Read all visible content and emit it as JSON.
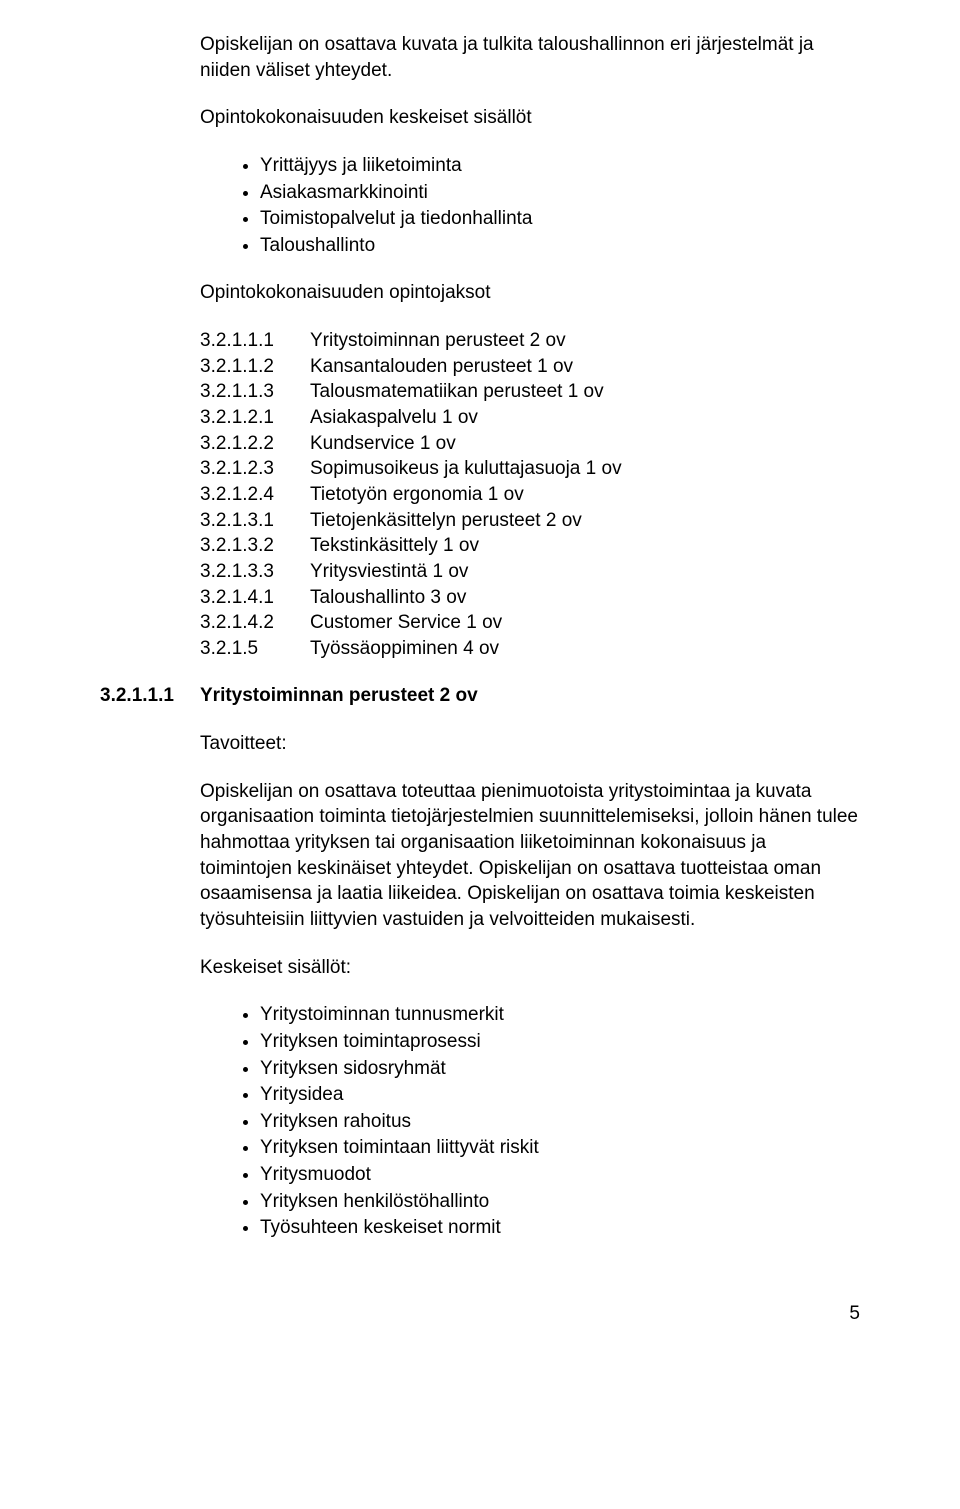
{
  "intro_paragraph": "Opiskelijan on osattava kuvata ja tulkita taloushallinnon eri järjestelmät ja niiden väliset yhteydet.",
  "section1_heading": "Opintokokonaisuuden keskeiset sisällöt",
  "section1_bullets": [
    "Yrittäjyys ja liiketoiminta",
    "Asiakasmarkkinointi",
    "Toimistopalvelut ja tiedonhallinta",
    "Taloushallinto"
  ],
  "section2_heading": "Opintokokonaisuuden opintojaksot",
  "course_codes": [
    {
      "code": "3.2.1.1.1",
      "desc": "Yritystoiminnan perusteet 2 ov"
    },
    {
      "code": "3.2.1.1.2",
      "desc": "Kansantalouden perusteet  1 ov"
    },
    {
      "code": "3.2.1.1.3",
      "desc": "Talousmatematiikan perusteet  1 ov"
    },
    {
      "code": "3.2.1.2.1",
      "desc": "Asiakaspalvelu 1 ov"
    },
    {
      "code": "3.2.1.2.2",
      "desc": "Kundservice 1 ov"
    },
    {
      "code": "3.2.1.2.3",
      "desc": "Sopimusoikeus ja kuluttajasuoja 1 ov"
    },
    {
      "code": "3.2.1.2.4",
      "desc": "Tietotyön ergonomia 1 ov"
    },
    {
      "code": "3.2.1.3.1",
      "desc": "Tietojenkäsittelyn perusteet 2 ov"
    },
    {
      "code": "3.2.1.3.2",
      "desc": "Tekstinkäsittely 1 ov"
    },
    {
      "code": "3.2.1.3.3",
      "desc": "Yritysviestintä 1 ov"
    },
    {
      "code": "3.2.1.4.1",
      "desc": "Taloushallinto 3 ov"
    },
    {
      "code": "3.2.1.4.2",
      "desc": "Customer Service 1 ov"
    },
    {
      "code": "3.2.1.5",
      "desc": "Työssäoppiminen 4 ov"
    }
  ],
  "numbered_heading": {
    "num": "3.2.1.1.1",
    "txt": "Yritystoiminnan perusteet 2 ov"
  },
  "tavoitteet_label": "Tavoitteet:",
  "tavoitteet_paragraph": "Opiskelijan on osattava toteuttaa pienimuotoista yritystoimintaa ja kuvata organisaation toiminta tietojärjestelmien suunnittelemiseksi, jolloin hänen tulee hahmottaa yrityksen tai organisaation liiketoiminnan kokonaisuus ja toimintojen keskinäiset yhteydet. Opiskelijan on osattava tuotteistaa oman osaamisensa ja laatia liikeidea. Opiskelijan on osattava toimia keskeisten työsuhteisiin liittyvien vastuiden ja velvoitteiden mukaisesti.",
  "sisallot_label": "Keskeiset sisällöt:",
  "sisallot_bullets": [
    "Yritystoiminnan tunnusmerkit",
    "Yrityksen toimintaprosessi",
    "Yrityksen sidosryhmät",
    "Yritysidea",
    "Yrityksen rahoitus",
    "Yrityksen toimintaan liittyvät riskit",
    "Yritysmuodot",
    "Yrityksen henkilöstöhallinto",
    "Työsuhteen keskeiset normit"
  ],
  "page_number": "5"
}
